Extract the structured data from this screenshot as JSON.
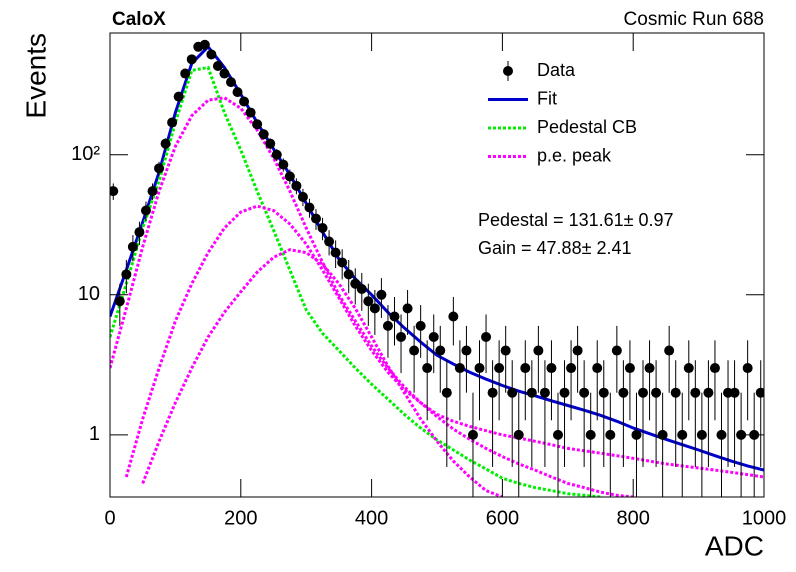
{
  "chart_data": {
    "type": "line",
    "title": "CaloX",
    "subtitle": "Cosmic Run 688",
    "x_label": "ADC",
    "y_label": "Events",
    "log_y": true,
    "legend": "upper right",
    "annotations": [
      "Pedestal = 131.61± 0.97",
      "Gain = 47.88± 2.41"
    ],
    "xlim": [
      0,
      1000
    ],
    "xticks": [
      0,
      200,
      400,
      600,
      800,
      1000
    ],
    "ylim": [
      0.36,
      740
    ],
    "yticks": [
      1,
      10,
      {
        "value": 100,
        "label": "10²"
      }
    ],
    "x": [
      0,
      25,
      50,
      75,
      100,
      125,
      150,
      175,
      200,
      225,
      250,
      275,
      300,
      325,
      350,
      375,
      400,
      425,
      450,
      475,
      500,
      525,
      550,
      575,
      600,
      625,
      650,
      675,
      700,
      725,
      750,
      775,
      800,
      825,
      850,
      875,
      900,
      925,
      950,
      975,
      1000
    ],
    "series": [
      {
        "name": "Data",
        "style": "points",
        "color": "#000000",
        "x": [
          5,
          15,
          25,
          35,
          45,
          55,
          65,
          75,
          85,
          95,
          105,
          115,
          125,
          135,
          145,
          155,
          165,
          175,
          185,
          195,
          205,
          215,
          225,
          235,
          245,
          255,
          265,
          275,
          285,
          295,
          305,
          315,
          325,
          335,
          345,
          355,
          365,
          375,
          385,
          395,
          405,
          415,
          425,
          435,
          445,
          455,
          465,
          475,
          485,
          495,
          505,
          515,
          525,
          535,
          545,
          555,
          565,
          575,
          585,
          595,
          605,
          615,
          625,
          635,
          645,
          655,
          665,
          675,
          685,
          695,
          705,
          715,
          725,
          735,
          745,
          755,
          765,
          775,
          785,
          795,
          805,
          815,
          825,
          835,
          845,
          855,
          865,
          875,
          885,
          895,
          905,
          915,
          925,
          935,
          945,
          955,
          965,
          975,
          985,
          995
        ],
        "values": [
          55,
          9,
          14,
          22,
          28,
          40,
          55,
          80,
          120,
          170,
          260,
          380,
          480,
          590,
          610,
          520,
          430,
          380,
          330,
          280,
          240,
          200,
          165,
          140,
          120,
          100,
          85,
          70,
          60,
          50,
          42,
          35,
          30,
          24,
          20,
          17,
          14,
          12,
          11,
          9,
          8,
          10,
          6,
          7,
          5,
          8,
          4,
          6,
          3,
          5,
          4,
          2,
          7,
          3,
          4,
          1,
          3,
          5,
          2,
          3,
          4,
          2,
          1,
          3,
          2,
          4,
          2,
          3,
          1,
          2,
          3,
          4,
          2,
          1,
          3,
          2,
          1,
          4,
          2,
          3,
          1,
          2,
          3,
          2,
          1,
          4,
          2,
          1,
          3,
          2,
          1,
          2,
          3,
          1,
          2,
          2,
          1,
          3,
          1,
          2
        ],
        "errors": [
          7.42,
          3,
          3.74,
          4.69,
          5.29,
          6.32,
          7.42,
          8.94,
          10.95,
          13.04,
          16.12,
          19.49,
          21.91,
          24.29,
          24.7,
          22.8,
          20.74,
          19.49,
          18.17,
          16.73,
          15.49,
          14.14,
          12.85,
          11.83,
          10.95,
          10,
          9.22,
          8.37,
          7.75,
          7.07,
          6.48,
          5.92,
          5.48,
          4.9,
          4.47,
          4.12,
          3.74,
          3.46,
          3.32,
          3,
          2.83,
          3.16,
          2.45,
          2.65,
          2.24,
          2.83,
          2,
          2.45,
          1.73,
          2.24,
          2,
          1.41,
          2.65,
          1.73,
          2,
          1,
          1.73,
          2.24,
          1.41,
          1.73,
          2,
          1.41,
          1,
          1.73,
          1.41,
          2,
          1.41,
          1.73,
          1,
          1.41,
          1.73,
          2,
          1.41,
          1,
          1.73,
          1.41,
          1,
          2,
          1.41,
          1.73,
          1,
          1.41,
          1.73,
          1.41,
          1,
          2,
          1.41,
          1,
          1.73,
          1.41,
          1,
          1.41,
          1.73,
          1,
          1.41,
          1.41,
          1,
          1.73,
          1,
          1.41
        ]
      },
      {
        "name": "Fit",
        "style": "solid",
        "color": "#0000cc",
        "values": [
          7,
          15,
          33,
          75,
          200,
          450,
          590,
          420,
          270,
          170,
          110,
          72,
          45,
          28,
          18,
          13,
          10,
          7.5,
          5.8,
          4.6,
          3.7,
          3.2,
          2.8,
          2.5,
          2.25,
          2.05,
          1.9,
          1.75,
          1.62,
          1.5,
          1.38,
          1.25,
          1.12,
          1.02,
          0.93,
          0.85,
          0.78,
          0.71,
          0.65,
          0.6,
          0.56
        ]
      },
      {
        "name": "Pedestal CB",
        "style": "dotted",
        "color": "#00ee00",
        "values": [
          5,
          12,
          30,
          65,
          170,
          400,
          420,
          200,
          108,
          55,
          29,
          15,
          7.8,
          5.3,
          4,
          3,
          2.3,
          1.8,
          1.4,
          1.12,
          0.92,
          0.78,
          0.66,
          0.57,
          0.49,
          0.45,
          0.42,
          0.4,
          0.38,
          0.37,
          0.36,
          null,
          null,
          null,
          null,
          null,
          null,
          null,
          null,
          null,
          null
        ]
      },
      {
        "name": "p.e. peak",
        "style": "dotted",
        "color": "#ff00ff",
        "values": [
          [
            3,
            8,
            22,
            55,
            115,
            190,
            245,
            255,
            215,
            150,
            95,
            55,
            30,
            17,
            10,
            6.5,
            4.3,
            3,
            2.2,
            1.7,
            1.35,
            1.1,
            0.93,
            0.8,
            0.7,
            0.62,
            0.56,
            0.5,
            0.45,
            0.42,
            0.39,
            0.37,
            0.36,
            null,
            null,
            null,
            null,
            null,
            null,
            null,
            null
          ],
          [
            null,
            0.5,
            1.3,
            3,
            6.5,
            12,
            20,
            30,
            39,
            43,
            40,
            32,
            23,
            15,
            9.5,
            6,
            4,
            2.8,
            2.1,
            1.7,
            1.4,
            1.25,
            1.15,
            1.07,
            1,
            0.95,
            0.9,
            0.85,
            0.8,
            0.77,
            0.74,
            0.71,
            0.68,
            0.65,
            0.62,
            0.6,
            0.58,
            0.56,
            0.54,
            0.52,
            0.5
          ],
          [
            null,
            null,
            0.45,
            0.9,
            1.7,
            3,
            5,
            7.5,
            10.5,
            14.5,
            18.5,
            21,
            20,
            16.5,
            12,
            8,
            5,
            3.1,
            2,
            1.3,
            0.9,
            0.65,
            0.5,
            0.4,
            0.36,
            null,
            null,
            null,
            null,
            null,
            null,
            null,
            null,
            null,
            null,
            null,
            null,
            null,
            null,
            null,
            null
          ]
        ]
      }
    ]
  }
}
